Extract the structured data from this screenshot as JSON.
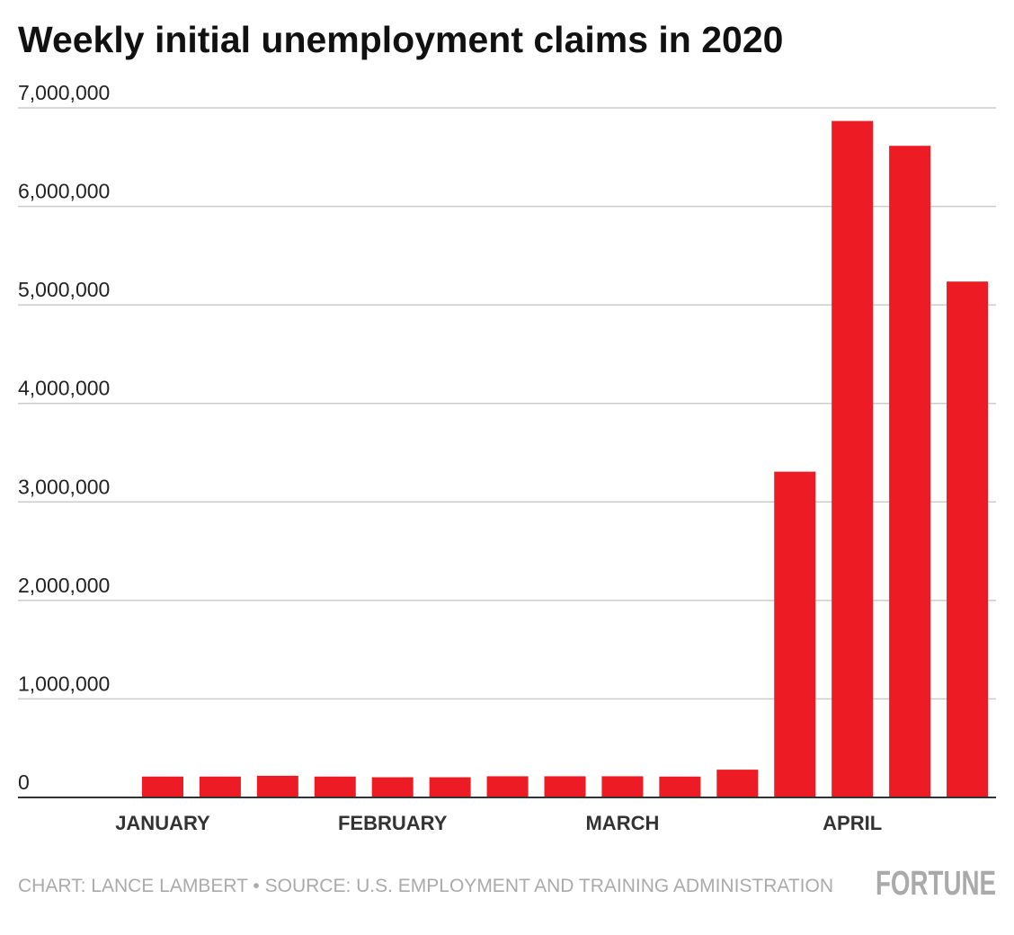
{
  "chart_data": {
    "type": "bar",
    "title": "Weekly initial unemployment claims in 2020",
    "categories": [
      "JANUARY",
      null,
      null,
      null,
      "FEBRUARY",
      null,
      null,
      null,
      "MARCH",
      null,
      null,
      null,
      "APRIL",
      null,
      null
    ],
    "values": [
      212000,
      212000,
      220000,
      212000,
      205000,
      205000,
      215000,
      215000,
      215000,
      212000,
      282000,
      3307000,
      6867000,
      6615000,
      5237000
    ],
    "color": "#ed1c24",
    "ylim": [
      0,
      7000000
    ],
    "yticks": [
      0,
      {
        "value": 1000000,
        "label": "1,000,000"
      },
      {
        "value": 2000000,
        "label": "2,000,000"
      },
      {
        "value": 3000000,
        "label": "3,000,000"
      },
      {
        "value": 4000000,
        "label": "4,000,000"
      },
      {
        "value": 5000000,
        "label": "5,000,000"
      },
      {
        "value": 6000000,
        "label": "6,000,000"
      },
      {
        "value": 7000000,
        "label": "7,000,000"
      }
    ],
    "grid": true,
    "source": "CHART: LANCE LAMBERT • SOURCE: U.S. EMPLOYMENT AND TRAINING ADMINISTRATION",
    "brand": "FORTUNE"
  }
}
